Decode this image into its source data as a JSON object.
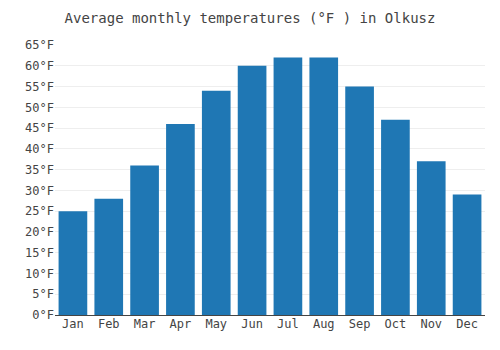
{
  "chart_data": {
    "type": "bar",
    "title": "Average monthly temperatures (°F ) in Olkusz",
    "categories": [
      "Jan",
      "Feb",
      "Mar",
      "Apr",
      "May",
      "Jun",
      "Jul",
      "Aug",
      "Sep",
      "Oct",
      "Nov",
      "Dec"
    ],
    "values": [
      25,
      28,
      36,
      46,
      54,
      60,
      62,
      62,
      55,
      47,
      37,
      29
    ],
    "ylim": [
      0,
      65
    ],
    "yticks": [
      {
        "value": 0,
        "label": "0°F"
      },
      {
        "value": 5,
        "label": "5°F"
      },
      {
        "value": 10,
        "label": "10°F"
      },
      {
        "value": 15,
        "label": "15°F"
      },
      {
        "value": 20,
        "label": "20°F"
      },
      {
        "value": 25,
        "label": "25°F"
      },
      {
        "value": 30,
        "label": "30°F"
      },
      {
        "value": 35,
        "label": "35°F"
      },
      {
        "value": 40,
        "label": "40°F"
      },
      {
        "value": 45,
        "label": "45°F"
      },
      {
        "value": 50,
        "label": "50°F"
      },
      {
        "value": 55,
        "label": "55°F"
      },
      {
        "value": 60,
        "label": "60°F"
      },
      {
        "value": 65,
        "label": "65°F"
      }
    ],
    "grid": true
  }
}
